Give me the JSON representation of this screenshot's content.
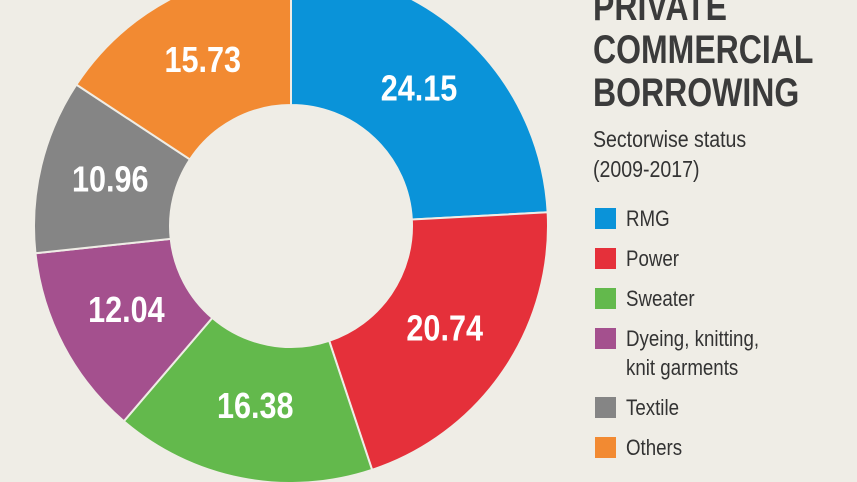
{
  "chart_data": {
    "type": "donut",
    "title": "PRIVATE COMMERCIAL BORROWING",
    "subtitle": "Sectorwise status (2009-2017)",
    "categories": [
      "RMG",
      "Power",
      "Sweater",
      "Dyeing, knitting, knit garments",
      "Textile",
      "Others"
    ],
    "values": [
      24.15,
      20.74,
      16.38,
      12.04,
      10.96,
      15.73
    ],
    "colors": [
      "#0a93d9",
      "#e5303a",
      "#63b94c",
      "#a4508e",
      "#858585",
      "#f28a32"
    ],
    "legend": "right"
  }
}
